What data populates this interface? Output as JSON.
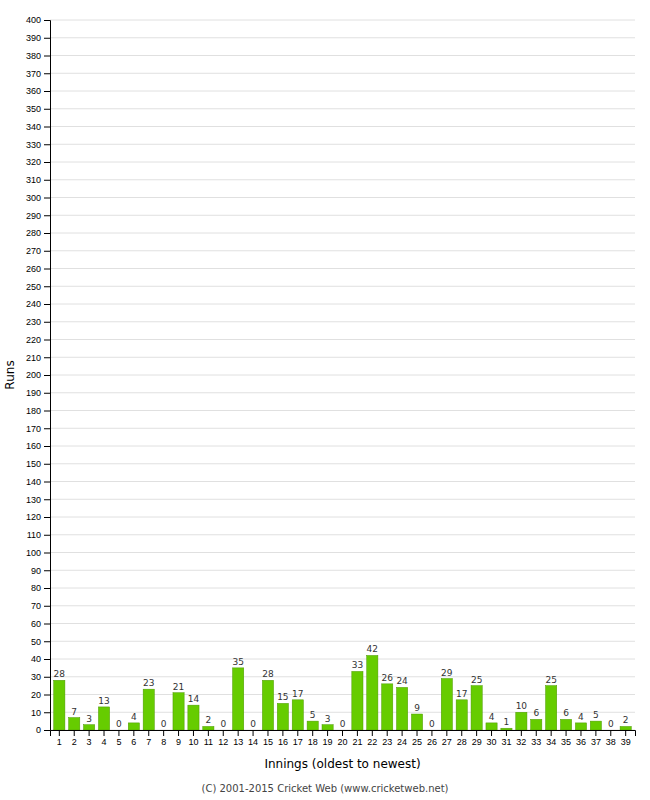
{
  "chart_data": {
    "type": "bar",
    "categories": [
      "1",
      "2",
      "3",
      "4",
      "5",
      "6",
      "7",
      "8",
      "9",
      "10",
      "11",
      "12",
      "13",
      "14",
      "15",
      "16",
      "17",
      "18",
      "19",
      "20",
      "21",
      "22",
      "23",
      "24",
      "25",
      "26",
      "27",
      "28",
      "29",
      "30",
      "31",
      "32",
      "33",
      "34",
      "35",
      "36",
      "37",
      "38",
      "39"
    ],
    "values": [
      28,
      7,
      3,
      13,
      0,
      4,
      23,
      0,
      21,
      14,
      2,
      0,
      35,
      0,
      28,
      15,
      17,
      5,
      3,
      0,
      33,
      42,
      26,
      24,
      9,
      0,
      29,
      17,
      25,
      4,
      1,
      10,
      6,
      25,
      6,
      4,
      5,
      0,
      2
    ],
    "color": "#66cc00",
    "xlabel": "Innings (oldest to newest)",
    "ylabel": "Runs",
    "ylim": [
      0,
      400
    ],
    "yticks": [
      0,
      10,
      20,
      30,
      40,
      50,
      60,
      70,
      80,
      90,
      100,
      110,
      120,
      130,
      140,
      150,
      160,
      170,
      180,
      190,
      200,
      210,
      220,
      230,
      240,
      250,
      260,
      270,
      280,
      290,
      300,
      310,
      320,
      330,
      340,
      350,
      360,
      370,
      380,
      390,
      400
    ],
    "grid": true,
    "data_labels": true,
    "annotations": [
      "(C) 2001-2015 Cricket Web (www.cricketweb.net)"
    ]
  }
}
